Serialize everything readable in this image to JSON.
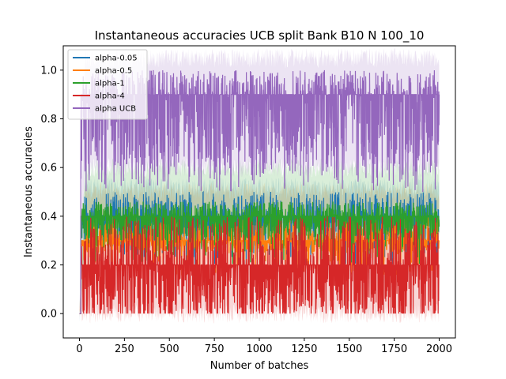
{
  "chart_data": {
    "type": "line",
    "title": "Instantaneous accuracies UCB split Bank B10 N 100_10",
    "xlabel": "Number of batches",
    "ylabel": "Instantaneous accuracies",
    "xlim": [
      -90,
      2090
    ],
    "ylim": [
      -0.1,
      1.1
    ],
    "xticks": [
      0,
      250,
      500,
      750,
      1000,
      1250,
      1500,
      1750,
      2000
    ],
    "xtick_labels": [
      "0",
      "250",
      "500",
      "750",
      "1000",
      "1250",
      "1500",
      "1750",
      "2000"
    ],
    "yticks": [
      0.0,
      0.2,
      0.4,
      0.6,
      0.8,
      1.0
    ],
    "ytick_labels": [
      "0.0",
      "0.2",
      "0.4",
      "0.6",
      "0.8",
      "1.0"
    ],
    "grid": false,
    "legend_position": "top-left",
    "n_points": 2000,
    "series": [
      {
        "name": "alpha-0.05",
        "color": "#1f77b4",
        "mean_level": 0.4,
        "low_level": 0.3,
        "high_level": 0.5,
        "band": [
          0.3,
          0.52
        ]
      },
      {
        "name": "alpha-0.5",
        "color": "#ff7f0e",
        "mean_level": 0.3,
        "low_level": 0.25,
        "high_level": 0.4,
        "band": [
          0.2,
          0.5
        ]
      },
      {
        "name": "alpha-1",
        "color": "#2ca02c",
        "mean_level": 0.4,
        "low_level": 0.3,
        "high_level": 0.46,
        "band": [
          0.3,
          0.6
        ]
      },
      {
        "name": "alpha-4",
        "color": "#d62728",
        "mean_level": 0.2,
        "low_level": 0.0,
        "high_level": 0.4,
        "band": [
          0.0,
          0.3
        ]
      },
      {
        "name": "alpha UCB",
        "color": "#9467bd",
        "mean_level": 0.9,
        "low_level": 0.6,
        "high_level": 1.0,
        "band": [
          0.6,
          1.05
        ]
      }
    ]
  }
}
